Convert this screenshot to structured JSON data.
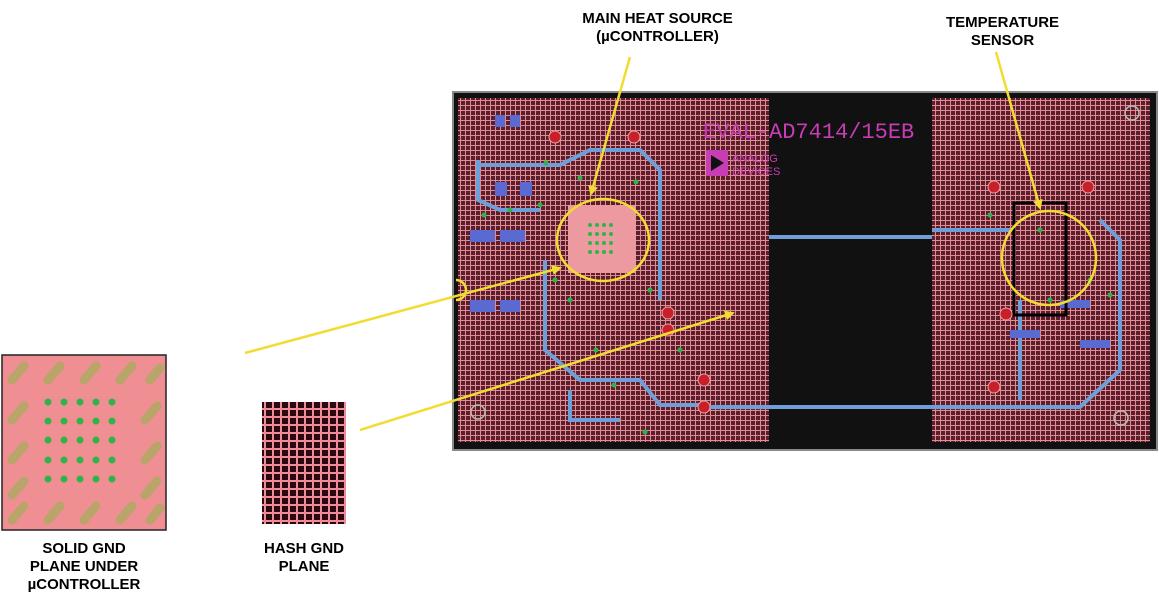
{
  "labels": {
    "main_heat_source": [
      "MAIN HEAT SOURCE",
      "(µCONTROLLER)"
    ],
    "temperature_sensor": [
      "TEMPERATURE",
      "SENSOR"
    ],
    "solid_gnd": [
      "SOLID GND",
      "PLANE UNDER",
      "µCONTROLLER"
    ],
    "hash_gnd": [
      "HASH GND",
      "PLANE"
    ]
  },
  "pcb": {
    "board_name": "EVAL-AD7414/15EB",
    "logo_text": [
      "ANALOG",
      "DEVICES"
    ]
  },
  "colors": {
    "annotation": "#f2dc32",
    "copper_pink": "#e88a92",
    "board_dark": "#6b2a34",
    "trace_blue": "#6f9fd8",
    "via_green": "#2fb34a",
    "pad_red": "#c8202a",
    "silkscreen_magenta": "#c83cb4"
  }
}
